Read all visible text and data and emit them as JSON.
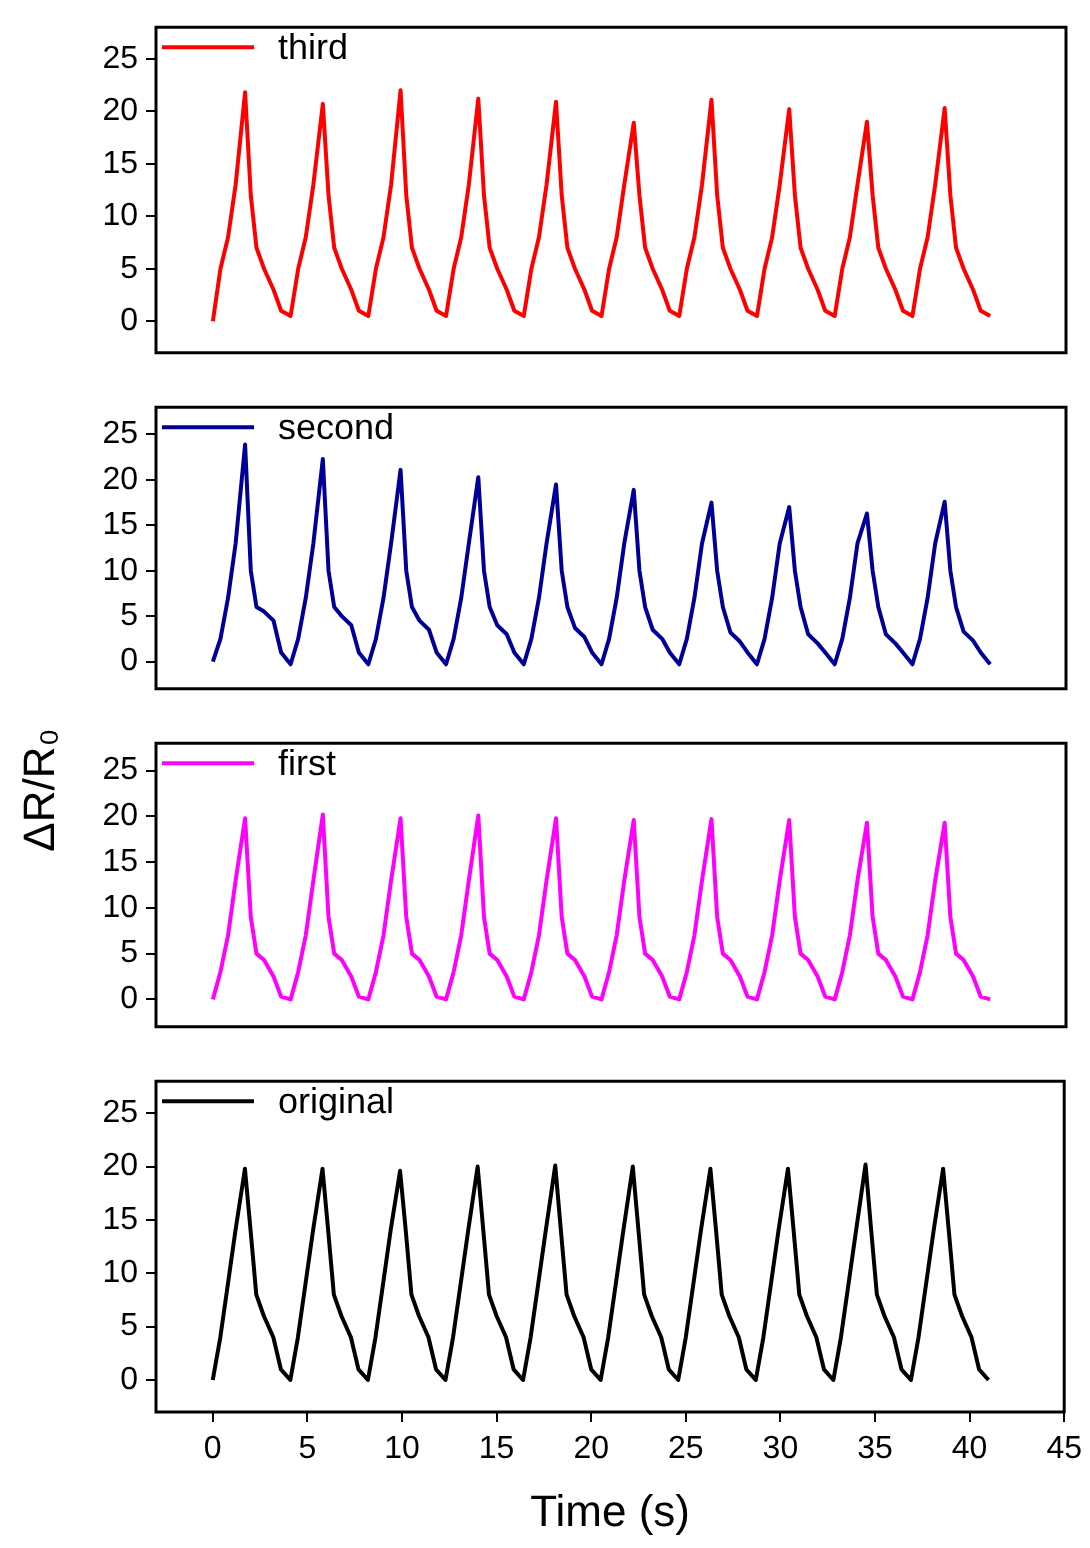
{
  "chart_data": [
    {
      "type": "line",
      "x": [
        0,
        0.4,
        0.8,
        1.2,
        1.7,
        2,
        2.3,
        2.7,
        3.2,
        3.6,
        4.1,
        4.5,
        4.9,
        5.3,
        5.8,
        6.1,
        6.4,
        6.8,
        7.3,
        7.7,
        8.2,
        8.6,
        9,
        9.4,
        9.9,
        10.2,
        10.5,
        10.9,
        11.4,
        11.8,
        12.3,
        12.7,
        13.1,
        13.5,
        14,
        14.3,
        14.6,
        15,
        15.5,
        15.9,
        16.4,
        16.8,
        17.2,
        17.6,
        18.1,
        18.4,
        18.7,
        19.1,
        19.6,
        20,
        20.5,
        20.9,
        21.3,
        21.7,
        22.2,
        22.5,
        22.8,
        23.2,
        23.7,
        24.1,
        24.6,
        25,
        25.4,
        25.8,
        26.3,
        26.6,
        26.9,
        27.3,
        27.8,
        28.2,
        28.7,
        29.1,
        29.5,
        29.9,
        30.4,
        30.7,
        31,
        31.4,
        31.9,
        32.3,
        32.8,
        33.2,
        33.6,
        34,
        34.5,
        34.8,
        35.1,
        35.5,
        36,
        36.4,
        36.9,
        37.3,
        37.7,
        38.1,
        38.6,
        38.9,
        39.2,
        39.6,
        40.1,
        40.5,
        41
      ],
      "series": [
        {
          "name": "third",
          "color": "#ff0000",
          "values": [
            0,
            5,
            8,
            13,
            21.8,
            12,
            7,
            5,
            3,
            1,
            0.5,
            5,
            8,
            13,
            20.7,
            12,
            7,
            5,
            3,
            1,
            0.5,
            5,
            8,
            13,
            22,
            12,
            7,
            5,
            3,
            1,
            0.5,
            5,
            8,
            13,
            21.2,
            12,
            7,
            5,
            3,
            1,
            0.5,
            5,
            8,
            13,
            20.9,
            12,
            7,
            5,
            3,
            1,
            0.5,
            5,
            8,
            13,
            18.9,
            12,
            7,
            5,
            3,
            1,
            0.5,
            5,
            8,
            13,
            21.1,
            12,
            7,
            5,
            3,
            1,
            0.5,
            5,
            8,
            13,
            20.2,
            12,
            7,
            5,
            3,
            1,
            0.5,
            5,
            8,
            13,
            19,
            12,
            7,
            5,
            3,
            1,
            0.5,
            5,
            8,
            13,
            20.3,
            12,
            7,
            5,
            3,
            1,
            0.5
          ]
        }
      ],
      "xlim": [
        -3,
        45
      ],
      "xticks": [
        0,
        5,
        10,
        15,
        20,
        25,
        30,
        35,
        40,
        45
      ],
      "ylim": [
        -3,
        28
      ],
      "yticks": [
        0,
        5,
        10,
        15,
        20,
        25
      ],
      "tick_labels": "y",
      "grid": false,
      "legend": "top left",
      "marker": "none",
      "line_style": "solid"
    },
    {
      "type": "line",
      "ylabel": "ΔR/R₀",
      "x": [
        0,
        0.4,
        0.8,
        1.2,
        1.7,
        2,
        2.3,
        2.7,
        3.2,
        3.6,
        4.1,
        4.5,
        4.9,
        5.3,
        5.8,
        6.1,
        6.4,
        6.8,
        7.3,
        7.7,
        8.2,
        8.6,
        9,
        9.4,
        9.9,
        10.2,
        10.5,
        10.9,
        11.4,
        11.8,
        12.3,
        12.7,
        13.1,
        13.5,
        14,
        14.3,
        14.6,
        15,
        15.5,
        15.9,
        16.4,
        16.8,
        17.2,
        17.6,
        18.1,
        18.4,
        18.7,
        19.1,
        19.6,
        20,
        20.5,
        20.9,
        21.3,
        21.7,
        22.2,
        22.5,
        22.8,
        23.2,
        23.7,
        24.1,
        24.6,
        25,
        25.4,
        25.8,
        26.3,
        26.6,
        26.9,
        27.3,
        27.8,
        28.2,
        28.7,
        29.1,
        29.5,
        29.9,
        30.4,
        30.7,
        31,
        31.4,
        31.9,
        32.3,
        32.8,
        33.2,
        33.6,
        34,
        34.5,
        34.8,
        35.1,
        35.5,
        36,
        36.4,
        36.9,
        37.3,
        37.7,
        38.1,
        38.6,
        38.9,
        39.2,
        39.6,
        40.1,
        40.5,
        41
      ],
      "series": [
        {
          "name": "second",
          "color": "#000099",
          "values": [
            0,
            2.5,
            7,
            13,
            23.9,
            10,
            6,
            5.5,
            4.5,
            1,
            -0.3,
            2.5,
            7,
            13,
            22.3,
            10,
            6,
            5,
            4,
            1,
            -0.3,
            2.5,
            7,
            13,
            21.1,
            10,
            6,
            4.5,
            3.5,
            1,
            -0.3,
            2.5,
            7,
            13,
            20.3,
            10,
            6,
            4,
            3,
            1,
            -0.3,
            2.5,
            7,
            13,
            19.5,
            10,
            6,
            3.7,
            2.7,
            1,
            -0.3,
            2.5,
            7,
            13,
            18.9,
            10,
            6,
            3.5,
            2.5,
            1,
            -0.3,
            2.5,
            7,
            13,
            17.5,
            10,
            6,
            3.2,
            2.2,
            1,
            -0.3,
            2.5,
            7,
            13,
            17,
            10,
            6,
            3,
            2,
            1,
            -0.3,
            2.5,
            7,
            13,
            16.3,
            10,
            6,
            3,
            2,
            1,
            -0.3,
            2.5,
            7,
            13,
            17.6,
            10,
            6,
            3.3,
            2.3,
            1,
            -0.3
          ]
        }
      ],
      "xlim": [
        -3,
        45
      ],
      "xticks": [
        0,
        5,
        10,
        15,
        20,
        25,
        30,
        35,
        40,
        45
      ],
      "ylim": [
        -3,
        28
      ],
      "yticks": [
        0,
        5,
        10,
        15,
        20,
        25
      ],
      "tick_labels": "y",
      "grid": false,
      "legend": "top left",
      "marker": "none",
      "line_style": "solid"
    },
    {
      "type": "line",
      "x": [
        0,
        0.4,
        0.8,
        1.2,
        1.7,
        2,
        2.3,
        2.7,
        3.2,
        3.6,
        4.1,
        4.5,
        4.9,
        5.3,
        5.8,
        6.1,
        6.4,
        6.8,
        7.3,
        7.7,
        8.2,
        8.6,
        9,
        9.4,
        9.9,
        10.2,
        10.5,
        10.9,
        11.4,
        11.8,
        12.3,
        12.7,
        13.1,
        13.5,
        14,
        14.3,
        14.6,
        15,
        15.5,
        15.9,
        16.4,
        16.8,
        17.2,
        17.6,
        18.1,
        18.4,
        18.7,
        19.1,
        19.6,
        20,
        20.5,
        20.9,
        21.3,
        21.7,
        22.2,
        22.5,
        22.8,
        23.2,
        23.7,
        24.1,
        24.6,
        25,
        25.4,
        25.8,
        26.3,
        26.6,
        26.9,
        27.3,
        27.8,
        28.2,
        28.7,
        29.1,
        29.5,
        29.9,
        30.4,
        30.7,
        31,
        31.4,
        31.9,
        32.3,
        32.8,
        33.2,
        33.6,
        34,
        34.5,
        34.8,
        35.1,
        35.5,
        36,
        36.4,
        36.9,
        37.3,
        37.7,
        38.1,
        38.6,
        38.9,
        39.2,
        39.6,
        40.1,
        40.5,
        41
      ],
      "series": [
        {
          "name": "first",
          "color": "#ff00ff",
          "values": [
            0,
            3,
            7,
            13,
            19.8,
            9,
            5,
            4.3,
            2.5,
            0.3,
            0,
            3,
            7,
            13,
            20.2,
            9,
            5,
            4.3,
            2.5,
            0.3,
            0,
            3,
            7,
            13,
            19.8,
            9,
            5,
            4.3,
            2.5,
            0.3,
            0,
            3,
            7,
            13,
            20.1,
            9,
            5,
            4.3,
            2.5,
            0.3,
            0,
            3,
            7,
            13,
            19.8,
            9,
            5,
            4.3,
            2.5,
            0.3,
            0,
            3,
            7,
            13,
            19.6,
            9,
            5,
            4.3,
            2.5,
            0.3,
            0,
            3,
            7,
            13,
            19.7,
            9,
            5,
            4.3,
            2.5,
            0.3,
            0,
            3,
            7,
            13,
            19.6,
            9,
            5,
            4.3,
            2.5,
            0.3,
            0,
            3,
            7,
            13,
            19.3,
            9,
            5,
            4.3,
            2.5,
            0.3,
            0,
            3,
            7,
            13,
            19.3,
            9,
            5,
            4.3,
            2.5,
            0.3,
            0
          ]
        }
      ],
      "xlim": [
        -3,
        45
      ],
      "xticks": [
        0,
        5,
        10,
        15,
        20,
        25,
        30,
        35,
        40,
        45
      ],
      "ylim": [
        -3,
        28
      ],
      "yticks": [
        0,
        5,
        10,
        15,
        20,
        25
      ],
      "tick_labels": "y",
      "grid": false,
      "legend": "top left",
      "marker": "none",
      "line_style": "solid"
    },
    {
      "type": "line",
      "xlabel": "Time (s)",
      "x": [
        0,
        0.4,
        0.8,
        1.2,
        1.7,
        2,
        2.3,
        2.7,
        3.2,
        3.6,
        4.1,
        4.5,
        4.9,
        5.3,
        5.8,
        6.1,
        6.4,
        6.8,
        7.3,
        7.7,
        8.2,
        8.6,
        9,
        9.4,
        9.9,
        10.2,
        10.5,
        10.9,
        11.4,
        11.8,
        12.3,
        12.7,
        13.1,
        13.5,
        14,
        14.3,
        14.6,
        15,
        15.5,
        15.9,
        16.4,
        16.8,
        17.2,
        17.6,
        18.1,
        18.4,
        18.7,
        19.1,
        19.6,
        20,
        20.5,
        20.9,
        21.3,
        21.7,
        22.2,
        22.5,
        22.8,
        23.2,
        23.7,
        24.1,
        24.6,
        25,
        25.4,
        25.8,
        26.3,
        26.6,
        26.9,
        27.3,
        27.8,
        28.2,
        28.7,
        29.1,
        29.5,
        29.9,
        30.4,
        30.7,
        31,
        31.4,
        31.9,
        32.3,
        32.8,
        33.2,
        33.6,
        34,
        34.5,
        34.8,
        35.1,
        35.5,
        36,
        36.4,
        36.9,
        37.3,
        37.7,
        38.1,
        38.6,
        38.9,
        39.2,
        39.6,
        40.1,
        40.5,
        41
      ],
      "series": [
        {
          "name": "original",
          "color": "#000000",
          "values": [
            0,
            4,
            9,
            14,
            19.8,
            14,
            8,
            6,
            4,
            1,
            0,
            4,
            9,
            14,
            19.8,
            14,
            8,
            6,
            4,
            1,
            0,
            4,
            9,
            14,
            19.6,
            14,
            8,
            6,
            4,
            1,
            0,
            4,
            9,
            14,
            20,
            14,
            8,
            6,
            4,
            1,
            0,
            4,
            9,
            14,
            20.1,
            14,
            8,
            6,
            4,
            1,
            0,
            4,
            9,
            14,
            20,
            14,
            8,
            6,
            4,
            1,
            0,
            4,
            9,
            14,
            19.8,
            14,
            8,
            6,
            4,
            1,
            0,
            4,
            9,
            14,
            19.8,
            14,
            8,
            6,
            4,
            1,
            0,
            4,
            9,
            14,
            20.2,
            14,
            8,
            6,
            4,
            1,
            0,
            4,
            9,
            14,
            19.8,
            14,
            8,
            6,
            4,
            1,
            0
          ]
        }
      ],
      "xlim": [
        -3,
        45
      ],
      "xticks": [
        0,
        5,
        10,
        15,
        20,
        25,
        30,
        35,
        40,
        45
      ],
      "ylim": [
        -3,
        28
      ],
      "yticks": [
        0,
        5,
        10,
        15,
        20,
        25
      ],
      "grid": false,
      "legend": "top left",
      "marker": "none",
      "line_style": "solid"
    }
  ]
}
